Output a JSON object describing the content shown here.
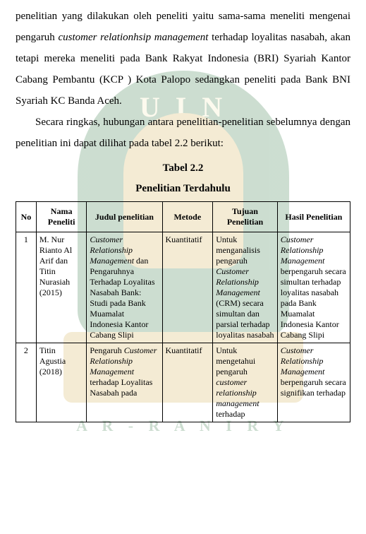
{
  "paragraphs": {
    "p1_a": "penelitian yang dilakukan oleh peneliti yaitu sama-sama meneliti mengenai pengaruh ",
    "p1_b_italic": "customer relationhsip  management",
    "p1_c": " terhadap loyalitas nasabah, akan tetapi mereka meneliti pada Bank Rakyat Indonesia (BRI) Syariah Kantor Cabang Pembantu (KCP ) Kota Palopo sedangkan peneliti pada Bank BNI Syariah KC Banda Aceh.",
    "p2": "Secara ringkas, hubungan antara penelitian-penelitian sebelumnya dengan penelitian ini dapat dilihat pada tabel 2.2 berikut:"
  },
  "table_label": "Tabel 2.2",
  "table_title": "Penelitian Terdahulu",
  "headers": {
    "no": "No",
    "nama": "Nama Peneliti",
    "judul": "Judul penelitian",
    "metode": "Metode",
    "tujuan": "Tujuan Penelitian",
    "hasil": "Hasil Penelitian"
  },
  "rows": {
    "r1": {
      "no": "1",
      "nama": "M. Nur Rianto Al Arif dan Titin Nurasiah (2015)",
      "judul_i": "Customer Relationship Management ",
      "judul_rest": "dan Pengaruhnya Terhadap Loyalitas Nasabah Bank: Studi pada Bank Muamalat Indonesia Kantor Cabang Slipi",
      "metode": "Kuantitatif",
      "tujuan_a": "Untuk menganalisis pengaruh ",
      "tujuan_b_i": "Customer Relationship Management ",
      "tujuan_c": "(CRM) secara simultan dan parsial terhadap loyalitas nasabah",
      "hasil_a_i": "Customer Relationship Management ",
      "hasil_b": "berpengaruh secara simultan terhadap loyalitas nasabah pada Bank Muamalat Indonesia Kantor Cabang Slipi"
    },
    "r2": {
      "no": "2",
      "nama": "Titin Agustia (2018)",
      "judul_a": "Pengaruh ",
      "judul_b_i": "Customer Relationship Management ",
      "judul_c": "terhadap Loyalitas Nasabah pada",
      "metode": "Kuantitatif",
      "tujuan_a": "Untuk mengetahui pengaruh ",
      "tujuan_b_i": "customer relationship management ",
      "tujuan_c": "terhadap",
      "hasil_a_i": "Customer Relationship Management ",
      "hasil_b": "berpengaruh secara signifikan terhadap"
    }
  },
  "watermark": {
    "uin": "U I N",
    "ribbon": "A R - R A N I R Y"
  },
  "colors": {
    "text": "#000000",
    "border": "#000000",
    "wm_green": "#1a6a2f",
    "wm_gold": "#d0a93e",
    "wm_light": "#f6e9b6",
    "bg": "#ffffff"
  },
  "fontsizes": {
    "body": 15,
    "table": 12,
    "watermark_uin": 40,
    "watermark_ribbon": 22
  }
}
